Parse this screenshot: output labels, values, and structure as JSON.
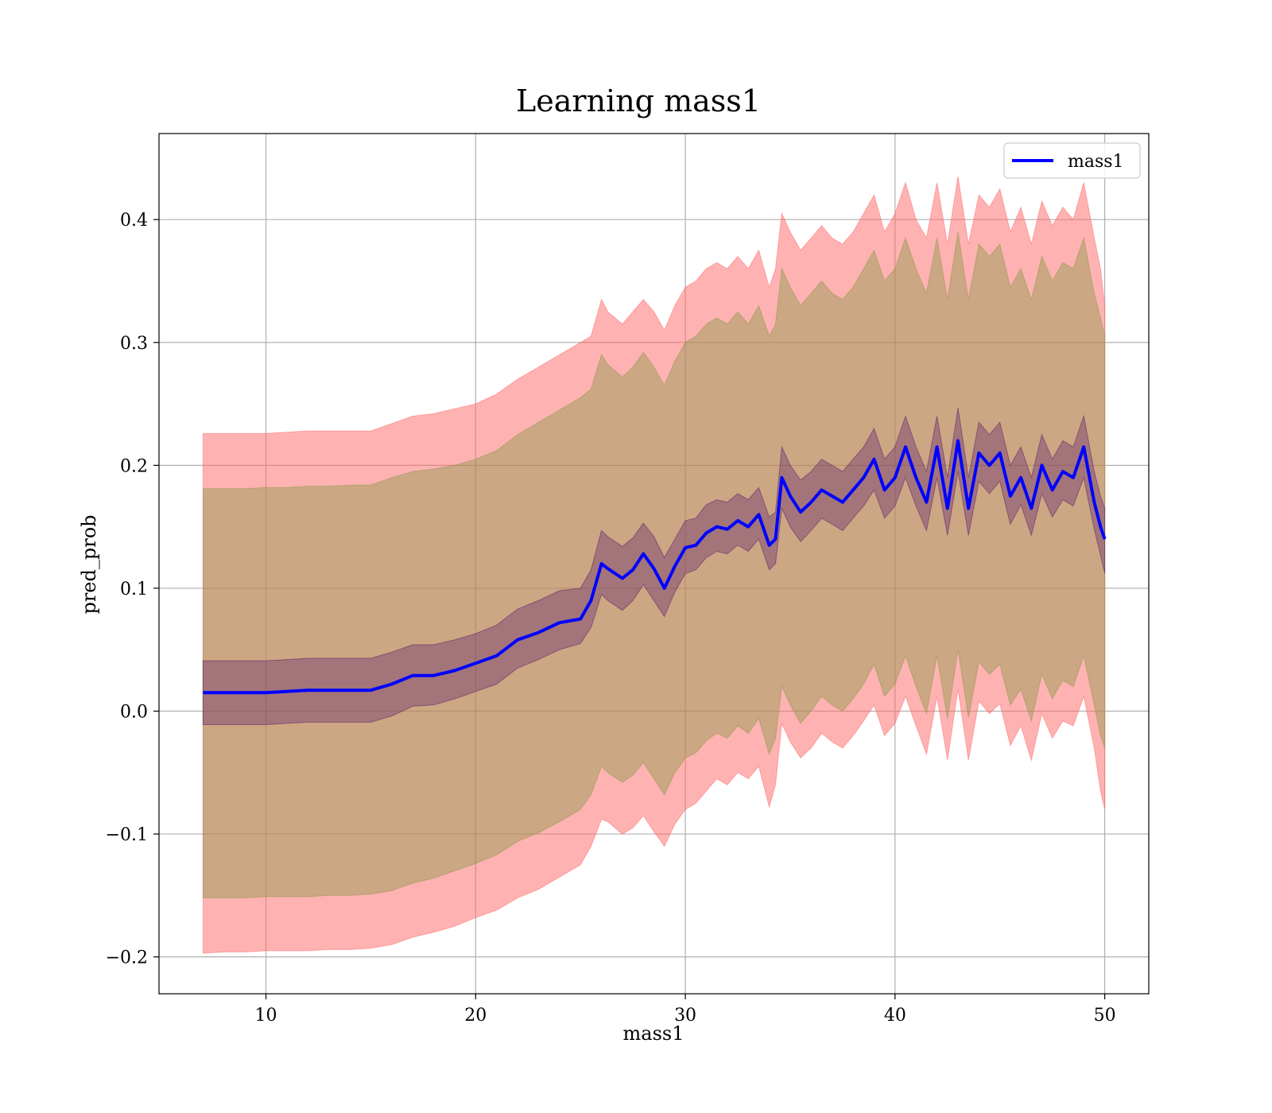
{
  "chart_data": {
    "type": "line",
    "title": "Learning mass1",
    "xlabel": "mass1",
    "ylabel": "pred_prob",
    "xlim": [
      4.9,
      52.1
    ],
    "ylim": [
      -0.23,
      0.47
    ],
    "xticks": [
      10,
      20,
      30,
      40,
      50
    ],
    "xtick_labels": [
      "10",
      "20",
      "30",
      "40",
      "50"
    ],
    "yticks": [
      -0.2,
      -0.1,
      0.0,
      0.1,
      0.2,
      0.3,
      0.4
    ],
    "ytick_labels": [
      "−0.2",
      "−0.1",
      "0.0",
      "0.1",
      "0.2",
      "0.3",
      "0.4"
    ],
    "grid": true,
    "legend_position": "top-right",
    "legend": [
      "mass1"
    ],
    "colors": {
      "line": "#0000ff",
      "outer_band": "#ff6666",
      "outer_band_opacity": 0.5,
      "middle_band": "#8b9a4a",
      "middle_band_opacity": 0.45,
      "inner_band": "#5a1a6a",
      "inner_band_opacity": 0.35
    },
    "series": [
      {
        "name": "mass1",
        "x": [
          7,
          8,
          9,
          10,
          11,
          12,
          13,
          14,
          15,
          16,
          17,
          18,
          19,
          20,
          21,
          22,
          23,
          24,
          25,
          25.5,
          26,
          26.3,
          27,
          27.5,
          28,
          28.5,
          29,
          29.5,
          30,
          30.5,
          31,
          31.5,
          32,
          32.5,
          33,
          33.5,
          34,
          34.3,
          34.6,
          35,
          35.5,
          36,
          36.5,
          37,
          37.5,
          38,
          38.5,
          39,
          39.5,
          40,
          40.5,
          41,
          41.5,
          42,
          42.5,
          43,
          43.5,
          44,
          44.5,
          45,
          45.5,
          46,
          46.5,
          47,
          47.5,
          48,
          48.5,
          49,
          49.5,
          49.8,
          50
        ],
        "y": [
          0.015,
          0.015,
          0.015,
          0.015,
          0.016,
          0.017,
          0.017,
          0.017,
          0.017,
          0.022,
          0.029,
          0.029,
          0.033,
          0.039,
          0.045,
          0.058,
          0.064,
          0.072,
          0.075,
          0.09,
          0.12,
          0.116,
          0.108,
          0.115,
          0.128,
          0.116,
          0.1,
          0.118,
          0.133,
          0.135,
          0.145,
          0.15,
          0.148,
          0.155,
          0.15,
          0.16,
          0.135,
          0.14,
          0.19,
          0.175,
          0.162,
          0.17,
          0.18,
          0.175,
          0.17,
          0.18,
          0.19,
          0.205,
          0.18,
          0.19,
          0.215,
          0.19,
          0.17,
          0.215,
          0.165,
          0.22,
          0.165,
          0.21,
          0.2,
          0.21,
          0.175,
          0.19,
          0.165,
          0.2,
          0.18,
          0.195,
          0.19,
          0.215,
          0.17,
          0.15,
          0.14
        ]
      }
    ],
    "bands": [
      {
        "role": "outer",
        "lower": [
          -0.197,
          -0.196,
          -0.196,
          -0.195,
          -0.195,
          -0.195,
          -0.194,
          -0.194,
          -0.193,
          -0.19,
          -0.184,
          -0.18,
          -0.175,
          -0.168,
          -0.162,
          -0.152,
          -0.145,
          -0.135,
          -0.125,
          -0.11,
          -0.088,
          -0.09,
          -0.1,
          -0.095,
          -0.085,
          -0.098,
          -0.11,
          -0.092,
          -0.08,
          -0.075,
          -0.065,
          -0.055,
          -0.06,
          -0.05,
          -0.055,
          -0.045,
          -0.078,
          -0.06,
          -0.01,
          -0.025,
          -0.038,
          -0.03,
          -0.018,
          -0.025,
          -0.03,
          -0.02,
          -0.008,
          0.005,
          -0.02,
          -0.01,
          0.012,
          -0.012,
          -0.035,
          0.012,
          -0.04,
          0.018,
          -0.04,
          0.008,
          -0.002,
          0.006,
          -0.028,
          -0.012,
          -0.04,
          -0.002,
          -0.022,
          -0.008,
          -0.012,
          0.012,
          -0.03,
          -0.065,
          -0.08
        ]
      },
      {
        "role": "outer",
        "upper": [
          0.226,
          0.226,
          0.226,
          0.226,
          0.227,
          0.228,
          0.228,
          0.228,
          0.228,
          0.234,
          0.24,
          0.242,
          0.246,
          0.25,
          0.258,
          0.27,
          0.28,
          0.29,
          0.3,
          0.305,
          0.335,
          0.325,
          0.315,
          0.325,
          0.335,
          0.325,
          0.31,
          0.33,
          0.345,
          0.35,
          0.36,
          0.365,
          0.36,
          0.37,
          0.36,
          0.375,
          0.345,
          0.36,
          0.405,
          0.39,
          0.375,
          0.385,
          0.395,
          0.385,
          0.38,
          0.39,
          0.405,
          0.42,
          0.39,
          0.405,
          0.43,
          0.4,
          0.385,
          0.43,
          0.38,
          0.435,
          0.38,
          0.42,
          0.41,
          0.425,
          0.39,
          0.41,
          0.38,
          0.415,
          0.395,
          0.41,
          0.4,
          0.43,
          0.385,
          0.36,
          0.33
        ]
      },
      {
        "role": "middle",
        "lower": [
          -0.152,
          -0.152,
          -0.152,
          -0.151,
          -0.151,
          -0.151,
          -0.15,
          -0.15,
          -0.149,
          -0.146,
          -0.14,
          -0.136,
          -0.13,
          -0.124,
          -0.117,
          -0.106,
          -0.099,
          -0.09,
          -0.08,
          -0.068,
          -0.045,
          -0.05,
          -0.058,
          -0.052,
          -0.042,
          -0.055,
          -0.068,
          -0.05,
          -0.038,
          -0.034,
          -0.024,
          -0.018,
          -0.022,
          -0.012,
          -0.018,
          -0.006,
          -0.035,
          -0.022,
          0.02,
          0.005,
          -0.01,
          0.0,
          0.012,
          0.005,
          0.0,
          0.01,
          0.022,
          0.038,
          0.012,
          0.022,
          0.045,
          0.02,
          -0.002,
          0.045,
          -0.006,
          0.05,
          -0.005,
          0.04,
          0.03,
          0.038,
          0.005,
          0.018,
          -0.008,
          0.03,
          0.01,
          0.025,
          0.02,
          0.045,
          0.005,
          -0.02,
          -0.03
        ]
      },
      {
        "role": "middle",
        "upper": [
          0.181,
          0.181,
          0.181,
          0.182,
          0.182,
          0.183,
          0.183,
          0.184,
          0.184,
          0.19,
          0.195,
          0.197,
          0.2,
          0.205,
          0.212,
          0.225,
          0.235,
          0.245,
          0.255,
          0.262,
          0.29,
          0.282,
          0.272,
          0.28,
          0.292,
          0.28,
          0.265,
          0.285,
          0.3,
          0.305,
          0.315,
          0.32,
          0.315,
          0.325,
          0.315,
          0.33,
          0.305,
          0.315,
          0.36,
          0.345,
          0.33,
          0.34,
          0.35,
          0.34,
          0.335,
          0.345,
          0.36,
          0.375,
          0.35,
          0.36,
          0.385,
          0.36,
          0.34,
          0.385,
          0.335,
          0.39,
          0.335,
          0.38,
          0.37,
          0.38,
          0.345,
          0.36,
          0.335,
          0.37,
          0.35,
          0.365,
          0.36,
          0.385,
          0.34,
          0.32,
          0.305
        ]
      },
      {
        "role": "inner",
        "lower": [
          -0.011,
          -0.011,
          -0.011,
          -0.011,
          -0.01,
          -0.009,
          -0.009,
          -0.009,
          -0.009,
          -0.004,
          0.004,
          0.005,
          0.01,
          0.016,
          0.022,
          0.035,
          0.042,
          0.05,
          0.055,
          0.068,
          0.095,
          0.09,
          0.082,
          0.09,
          0.103,
          0.09,
          0.077,
          0.097,
          0.112,
          0.115,
          0.125,
          0.13,
          0.128,
          0.135,
          0.13,
          0.14,
          0.115,
          0.12,
          0.165,
          0.15,
          0.138,
          0.147,
          0.157,
          0.152,
          0.147,
          0.157,
          0.167,
          0.18,
          0.157,
          0.167,
          0.19,
          0.167,
          0.147,
          0.19,
          0.143,
          0.195,
          0.143,
          0.187,
          0.177,
          0.187,
          0.152,
          0.168,
          0.143,
          0.177,
          0.158,
          0.172,
          0.167,
          0.19,
          0.148,
          0.127,
          0.112
        ]
      },
      {
        "role": "inner",
        "upper": [
          0.041,
          0.041,
          0.041,
          0.041,
          0.042,
          0.043,
          0.043,
          0.043,
          0.043,
          0.048,
          0.054,
          0.054,
          0.058,
          0.063,
          0.07,
          0.083,
          0.09,
          0.098,
          0.1,
          0.115,
          0.147,
          0.142,
          0.134,
          0.141,
          0.153,
          0.142,
          0.125,
          0.14,
          0.155,
          0.157,
          0.168,
          0.172,
          0.17,
          0.177,
          0.172,
          0.182,
          0.158,
          0.162,
          0.215,
          0.2,
          0.188,
          0.195,
          0.205,
          0.2,
          0.195,
          0.205,
          0.215,
          0.23,
          0.205,
          0.215,
          0.24,
          0.215,
          0.195,
          0.24,
          0.19,
          0.247,
          0.19,
          0.235,
          0.225,
          0.235,
          0.2,
          0.215,
          0.19,
          0.225,
          0.205,
          0.22,
          0.215,
          0.24,
          0.195,
          0.175,
          0.165
        ]
      }
    ]
  }
}
